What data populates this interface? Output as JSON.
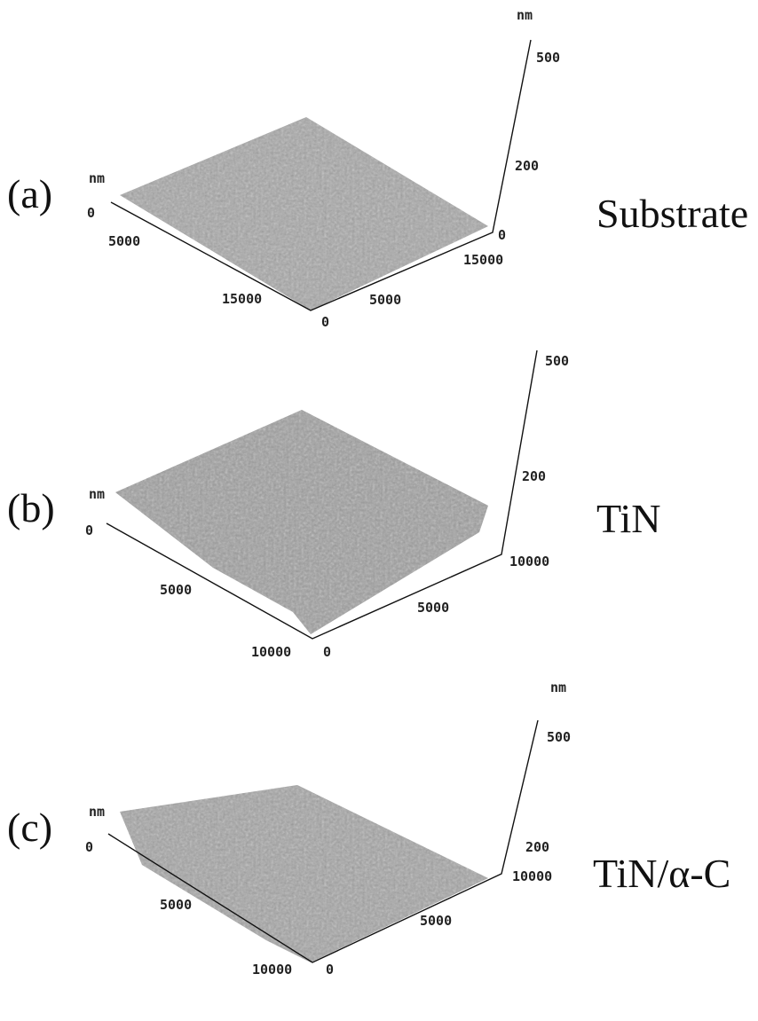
{
  "panels": [
    {
      "label": "(a)",
      "name": "Substrate",
      "z_unit": "nm",
      "z_ticks": [
        "500",
        "200",
        "0"
      ],
      "left_unit": "nm",
      "left_ticks": [
        "0",
        "5000",
        "15000"
      ],
      "right_ticks": [
        "0",
        "5000",
        "15000"
      ]
    },
    {
      "label": "(b)",
      "name": "TiN",
      "z_ticks": [
        "500",
        "200"
      ],
      "left_unit": "nm",
      "left_ticks": [
        "0",
        "5000",
        "10000"
      ],
      "right_ticks": [
        "0",
        "5000",
        "10000"
      ]
    },
    {
      "label": "(c)",
      "name": "TiN/α-C",
      "z_unit": "nm",
      "z_ticks": [
        "500",
        "200"
      ],
      "left_unit": "nm",
      "left_ticks": [
        "0",
        "5000",
        "10000"
      ],
      "right_ticks": [
        "0",
        "5000",
        "10000"
      ]
    }
  ]
}
